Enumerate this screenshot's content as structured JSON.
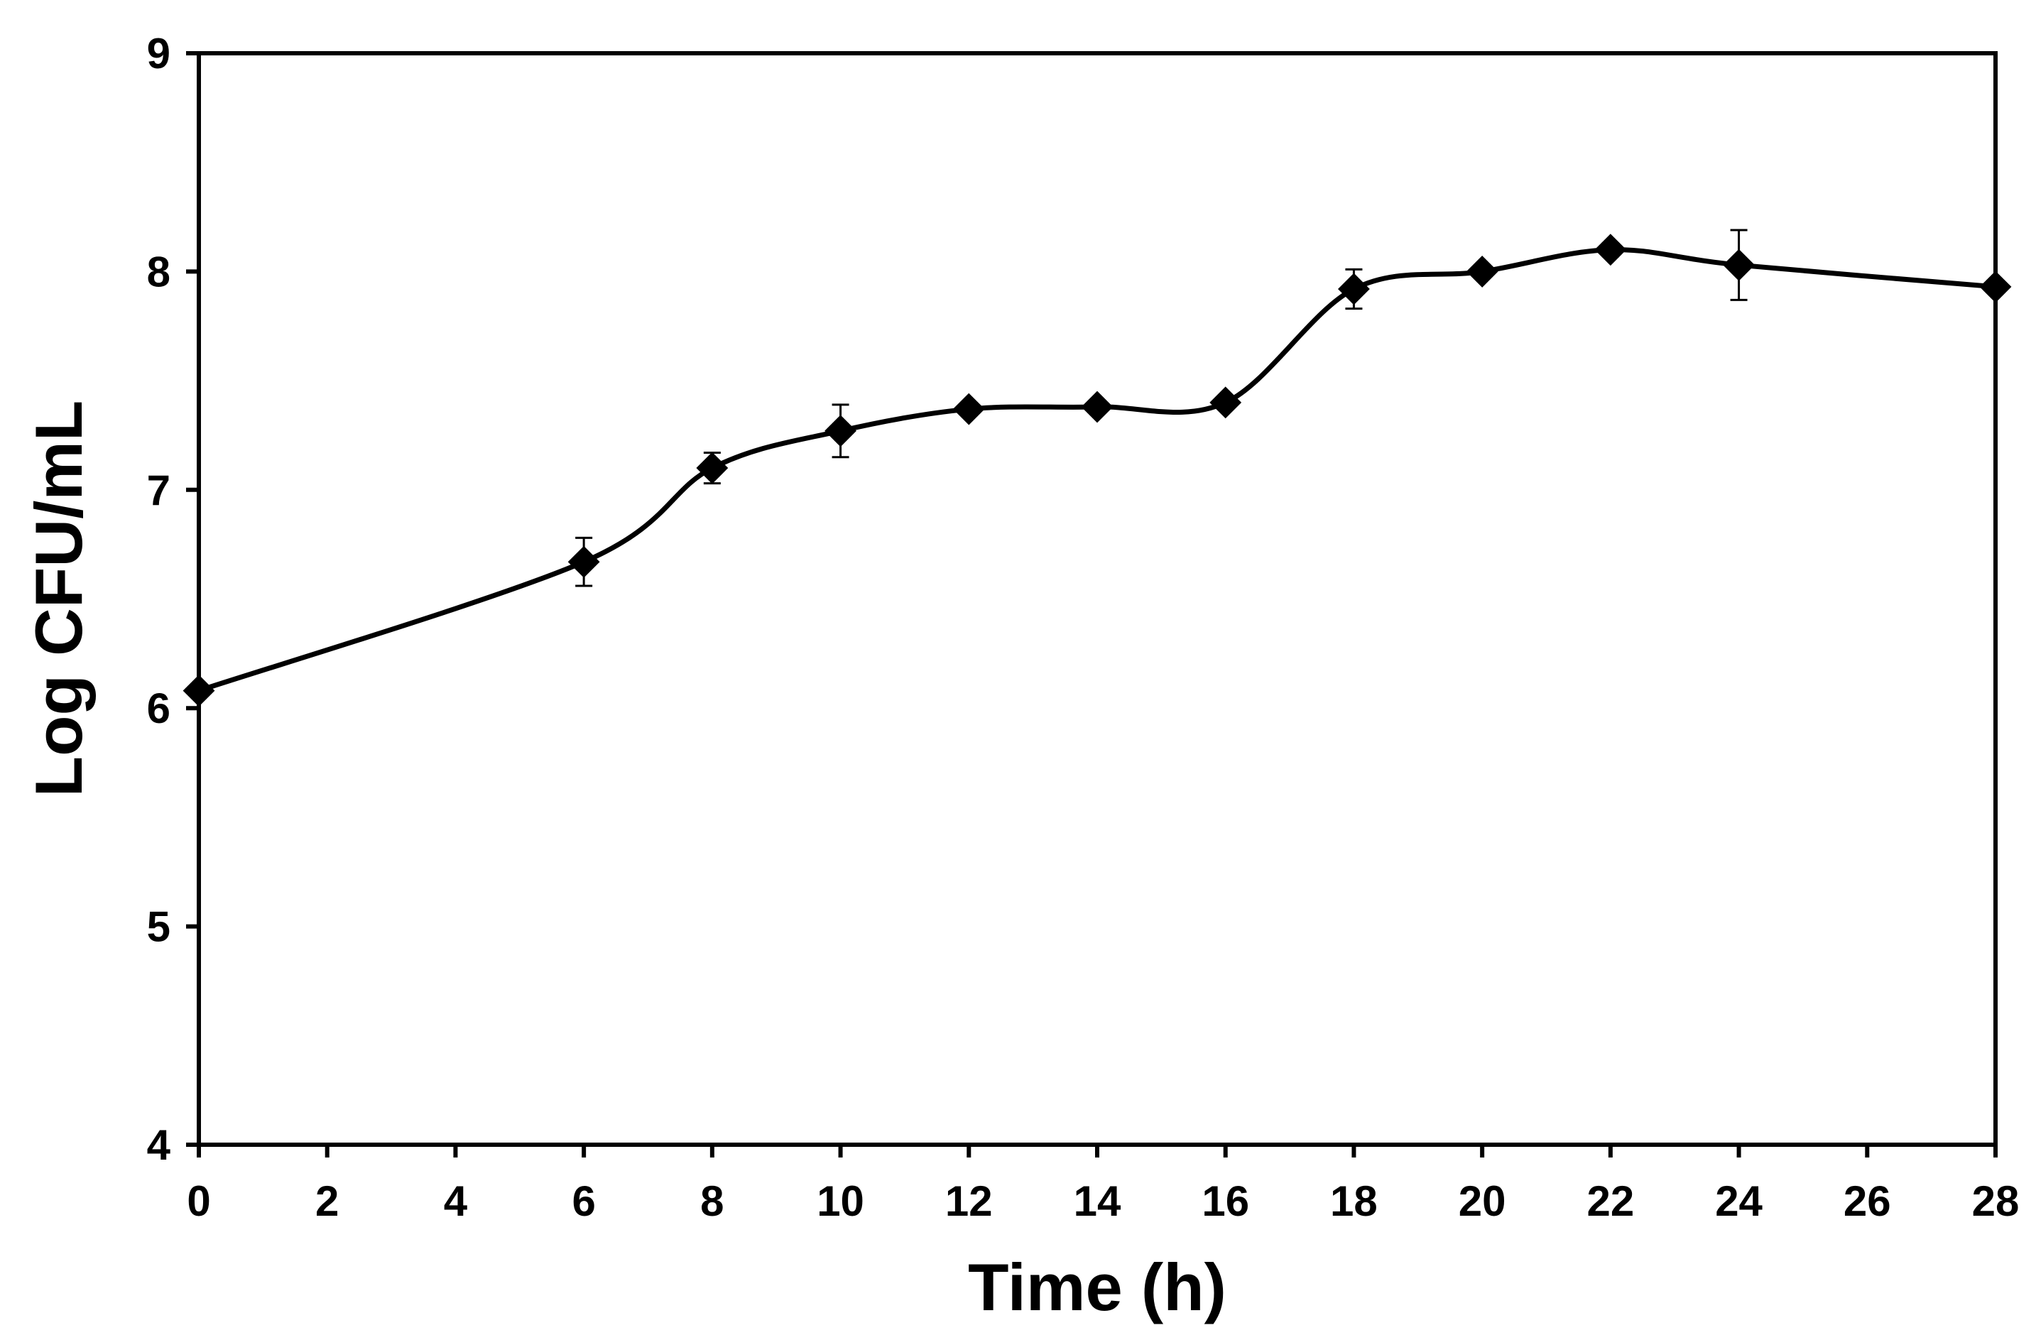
{
  "chart_data": {
    "type": "line",
    "title": "",
    "xlabel": "Time (h)",
    "ylabel": "Log CFU/mL",
    "xlim": [
      0,
      28
    ],
    "ylim": [
      4,
      9
    ],
    "xticks": [
      "0",
      "2",
      "4",
      "6",
      "8",
      "10",
      "12",
      "14",
      "16",
      "18",
      "20",
      "22",
      "24",
      "26",
      "28"
    ],
    "yticks": [
      "4",
      "5",
      "6",
      "7",
      "8",
      "9"
    ],
    "grid": false,
    "legend": "none",
    "line_color": "#000000",
    "marker": "diamond",
    "smoothed": true,
    "series": [
      {
        "name": "Log CFU/mL",
        "x": [
          0,
          6,
          8,
          10,
          12,
          14,
          16,
          18,
          20,
          22,
          24,
          28
        ],
        "y": [
          6.08,
          6.67,
          7.1,
          7.27,
          7.37,
          7.38,
          7.4,
          7.92,
          8.0,
          8.1,
          8.03,
          7.93
        ],
        "error": [
          0.0,
          0.11,
          0.07,
          0.12,
          0.02,
          0.02,
          0.02,
          0.09,
          0.02,
          0.03,
          0.16,
          0.02
        ]
      }
    ]
  }
}
